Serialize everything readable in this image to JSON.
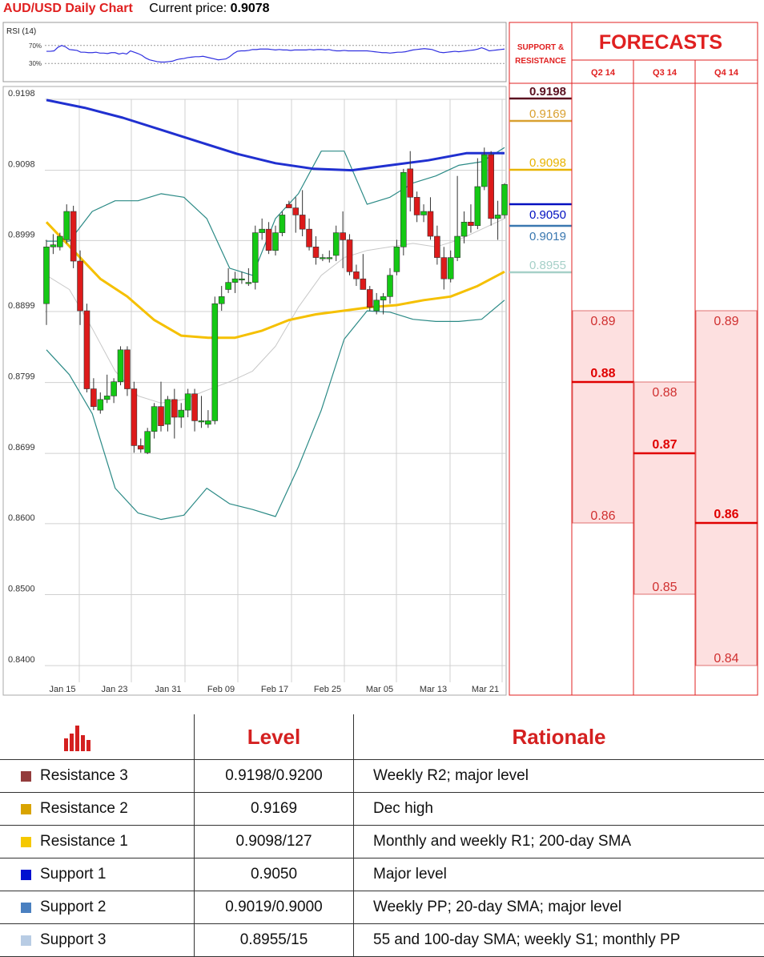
{
  "header": {
    "title": "AUD/USD Daily Chart",
    "price_label": "Current price:",
    "price_value": "0.9078"
  },
  "rsi": {
    "label": "RSI (14)",
    "upper_label": "70%",
    "lower_label": "30%",
    "values": [
      57,
      57,
      58,
      66,
      70,
      67,
      61,
      60,
      59,
      55,
      55,
      54,
      54,
      55,
      53,
      53,
      52,
      54,
      54,
      51,
      53,
      51,
      58,
      55,
      52,
      48,
      42,
      38,
      36,
      34,
      33,
      33,
      34,
      35,
      38,
      40,
      41,
      43,
      44,
      45,
      45,
      46,
      44,
      42,
      40,
      38,
      39,
      40,
      45,
      52,
      57,
      58,
      58,
      59,
      61,
      61,
      62,
      62,
      62,
      61,
      60,
      61,
      60,
      60,
      59,
      60,
      60,
      60,
      60,
      61,
      60,
      61,
      61,
      60,
      61,
      59,
      58,
      58,
      59,
      58,
      58,
      58,
      58,
      58,
      58,
      57,
      56,
      55,
      54,
      54,
      53,
      54,
      55,
      55,
      56,
      58,
      60,
      61,
      62,
      63,
      62,
      61,
      58,
      55,
      54,
      55,
      56,
      57,
      56,
      57,
      58,
      59,
      60,
      62,
      65,
      62,
      58,
      59,
      60,
      61,
      62
    ]
  },
  "chart_data": {
    "type": "candlestick",
    "title": "AUD/USD Daily Chart",
    "ylim": [
      0.839,
      0.9198
    ],
    "y_ticks": [
      "0.9198",
      "0.9098",
      "0.8999",
      "0.8899",
      "0.8799",
      "0.8699",
      "0.8600",
      "0.8500",
      "0.8400"
    ],
    "x_ticks": [
      "Jan 15",
      "Jan 23",
      "Jan 31",
      "Feb 09",
      "Feb 17",
      "Feb 25",
      "Mar 05",
      "Mar 13",
      "Mar 21"
    ],
    "candles": [
      {
        "o": 0.891,
        "h": 0.9,
        "l": 0.888,
        "c": 0.899
      },
      {
        "o": 0.899,
        "h": 0.9008,
        "l": 0.898,
        "c": 0.8993
      },
      {
        "o": 0.899,
        "h": 0.901,
        "l": 0.8985,
        "c": 0.9005
      },
      {
        "o": 0.9,
        "h": 0.905,
        "l": 0.8995,
        "c": 0.904
      },
      {
        "o": 0.904,
        "h": 0.9048,
        "l": 0.896,
        "c": 0.897
      },
      {
        "o": 0.897,
        "h": 0.8985,
        "l": 0.888,
        "c": 0.89
      },
      {
        "o": 0.89,
        "h": 0.891,
        "l": 0.8785,
        "c": 0.879
      },
      {
        "o": 0.879,
        "h": 0.8805,
        "l": 0.876,
        "c": 0.8765
      },
      {
        "o": 0.876,
        "h": 0.8785,
        "l": 0.8755,
        "c": 0.8775
      },
      {
        "o": 0.8775,
        "h": 0.881,
        "l": 0.877,
        "c": 0.878
      },
      {
        "o": 0.878,
        "h": 0.8805,
        "l": 0.877,
        "c": 0.88
      },
      {
        "o": 0.88,
        "h": 0.885,
        "l": 0.8795,
        "c": 0.8845
      },
      {
        "o": 0.8845,
        "h": 0.885,
        "l": 0.878,
        "c": 0.879
      },
      {
        "o": 0.879,
        "h": 0.88,
        "l": 0.87,
        "c": 0.871
      },
      {
        "o": 0.871,
        "h": 0.872,
        "l": 0.87,
        "c": 0.8705
      },
      {
        "o": 0.87,
        "h": 0.8735,
        "l": 0.8698,
        "c": 0.873
      },
      {
        "o": 0.873,
        "h": 0.877,
        "l": 0.872,
        "c": 0.8765
      },
      {
        "o": 0.8765,
        "h": 0.88,
        "l": 0.873,
        "c": 0.8738
      },
      {
        "o": 0.874,
        "h": 0.878,
        "l": 0.873,
        "c": 0.8775
      },
      {
        "o": 0.8775,
        "h": 0.879,
        "l": 0.872,
        "c": 0.875
      },
      {
        "o": 0.875,
        "h": 0.877,
        "l": 0.8735,
        "c": 0.876
      },
      {
        "o": 0.876,
        "h": 0.879,
        "l": 0.875,
        "c": 0.8783
      },
      {
        "o": 0.8783,
        "h": 0.879,
        "l": 0.873,
        "c": 0.8745
      },
      {
        "o": 0.8745,
        "h": 0.878,
        "l": 0.8735,
        "c": 0.8745
      },
      {
        "o": 0.874,
        "h": 0.876,
        "l": 0.8735,
        "c": 0.8745
      },
      {
        "o": 0.8745,
        "h": 0.892,
        "l": 0.874,
        "c": 0.891
      },
      {
        "o": 0.891,
        "h": 0.8935,
        "l": 0.89,
        "c": 0.892
      },
      {
        "o": 0.893,
        "h": 0.896,
        "l": 0.8925,
        "c": 0.894
      },
      {
        "o": 0.894,
        "h": 0.8955,
        "l": 0.8925,
        "c": 0.8945
      },
      {
        "o": 0.8945,
        "h": 0.8955,
        "l": 0.8938,
        "c": 0.8945
      },
      {
        "o": 0.894,
        "h": 0.896,
        "l": 0.8935,
        "c": 0.894
      },
      {
        "o": 0.894,
        "h": 0.902,
        "l": 0.893,
        "c": 0.901
      },
      {
        "o": 0.901,
        "h": 0.903,
        "l": 0.9,
        "c": 0.9015
      },
      {
        "o": 0.9015,
        "h": 0.9025,
        "l": 0.898,
        "c": 0.8985
      },
      {
        "o": 0.8985,
        "h": 0.902,
        "l": 0.8978,
        "c": 0.901
      },
      {
        "o": 0.901,
        "h": 0.904,
        "l": 0.9005,
        "c": 0.9035
      },
      {
        "o": 0.905,
        "h": 0.9055,
        "l": 0.9045,
        "c": 0.9045
      },
      {
        "o": 0.9045,
        "h": 0.906,
        "l": 0.901,
        "c": 0.9035
      },
      {
        "o": 0.9035,
        "h": 0.907,
        "l": 0.9005,
        "c": 0.9015
      },
      {
        "o": 0.9015,
        "h": 0.903,
        "l": 0.8985,
        "c": 0.899
      },
      {
        "o": 0.899,
        "h": 0.9005,
        "l": 0.8965,
        "c": 0.8975
      },
      {
        "o": 0.8975,
        "h": 0.898,
        "l": 0.897,
        "c": 0.8975
      },
      {
        "o": 0.8975,
        "h": 0.8985,
        "l": 0.8968,
        "c": 0.8975
      },
      {
        "o": 0.8978,
        "h": 0.902,
        "l": 0.897,
        "c": 0.901
      },
      {
        "o": 0.901,
        "h": 0.904,
        "l": 0.896,
        "c": 0.9
      },
      {
        "o": 0.9,
        "h": 0.9008,
        "l": 0.895,
        "c": 0.8955
      },
      {
        "o": 0.8955,
        "h": 0.8965,
        "l": 0.8935,
        "c": 0.8945
      },
      {
        "o": 0.8945,
        "h": 0.898,
        "l": 0.893,
        "c": 0.893
      },
      {
        "o": 0.893,
        "h": 0.8935,
        "l": 0.89,
        "c": 0.8905
      },
      {
        "o": 0.89,
        "h": 0.8925,
        "l": 0.8895,
        "c": 0.8915
      },
      {
        "o": 0.8915,
        "h": 0.8925,
        "l": 0.8895,
        "c": 0.892
      },
      {
        "o": 0.892,
        "h": 0.896,
        "l": 0.891,
        "c": 0.895
      },
      {
        "o": 0.8955,
        "h": 0.9,
        "l": 0.895,
        "c": 0.899
      },
      {
        "o": 0.899,
        "h": 0.91,
        "l": 0.8978,
        "c": 0.9095
      },
      {
        "o": 0.91,
        "h": 0.9125,
        "l": 0.904,
        "c": 0.906
      },
      {
        "o": 0.906,
        "h": 0.9068,
        "l": 0.9025,
        "c": 0.9035
      },
      {
        "o": 0.9035,
        "h": 0.905,
        "l": 0.9025,
        "c": 0.904
      },
      {
        "o": 0.904,
        "h": 0.906,
        "l": 0.9,
        "c": 0.9005
      },
      {
        "o": 0.9005,
        "h": 0.902,
        "l": 0.8965,
        "c": 0.8975
      },
      {
        "o": 0.8975,
        "h": 0.899,
        "l": 0.893,
        "c": 0.8945
      },
      {
        "o": 0.8945,
        "h": 0.8985,
        "l": 0.894,
        "c": 0.8975
      },
      {
        "o": 0.8975,
        "h": 0.909,
        "l": 0.897,
        "c": 0.9005
      },
      {
        "o": 0.9005,
        "h": 0.904,
        "l": 0.8995,
        "c": 0.9025
      },
      {
        "o": 0.9025,
        "h": 0.905,
        "l": 0.901,
        "c": 0.902
      },
      {
        "o": 0.902,
        "h": 0.9115,
        "l": 0.9015,
        "c": 0.9075
      },
      {
        "o": 0.9075,
        "h": 0.913,
        "l": 0.907,
        "c": 0.912
      },
      {
        "o": 0.912,
        "h": 0.9125,
        "l": 0.902,
        "c": 0.903
      },
      {
        "o": 0.903,
        "h": 0.9055,
        "l": 0.9,
        "c": 0.9035
      },
      {
        "o": 0.9035,
        "h": 0.908,
        "l": 0.903,
        "c": 0.9078
      }
    ],
    "sma_200": [
      0.9197,
      0.9186,
      0.9172,
      0.9155,
      0.9138,
      0.9121,
      0.9108,
      0.91,
      0.9098,
      0.9105,
      0.9112,
      0.9122,
      0.9122
    ],
    "sma_55": [
      0.9025,
      0.8985,
      0.8945,
      0.892,
      0.8887,
      0.8865,
      0.8862,
      0.8862,
      0.8872,
      0.8887,
      0.8895,
      0.89,
      0.8905,
      0.8908,
      0.8915,
      0.892,
      0.8935,
      0.8955
    ],
    "boll_upper": [
      0.8998,
      0.8998,
      0.904,
      0.9055,
      0.9055,
      0.9065,
      0.906,
      0.903,
      0.896,
      0.895,
      0.903,
      0.9065,
      0.9125,
      0.9125,
      0.905,
      0.906,
      0.908,
      0.909,
      0.9105,
      0.911,
      0.913
    ],
    "boll_lower": [
      0.8845,
      0.881,
      0.8755,
      0.865,
      0.8615,
      0.8606,
      0.8612,
      0.865,
      0.8628,
      0.862,
      0.861,
      0.868,
      0.876,
      0.886,
      0.89,
      0.8898,
      0.8888,
      0.8885,
      0.8885,
      0.8888,
      0.8915
    ],
    "boll_mid": [
      0.895,
      0.893,
      0.8875,
      0.8815,
      0.878,
      0.877,
      0.8775,
      0.8788,
      0.88,
      0.8815,
      0.885,
      0.8905,
      0.895,
      0.8975,
      0.8985,
      0.899,
      0.8995,
      0.899,
      0.9,
      0.9015,
      0.903
    ]
  },
  "sr_panel": {
    "header": "SUPPORT & RESISTANCE",
    "levels": [
      {
        "label": "0.9198",
        "value": 0.9198,
        "color": "#5a1020",
        "bold": true
      },
      {
        "label": "0.9169",
        "value": 0.9169,
        "color": "#d9a030",
        "bold": false
      },
      {
        "label": "0.9098",
        "value": 0.9098,
        "color": "#e8b400",
        "bold": false
      },
      {
        "label": "0.9050",
        "value": 0.905,
        "color": "#0010c0",
        "bold": false
      },
      {
        "label": "0.9019",
        "value": 0.9019,
        "color": "#3a78b0",
        "bold": false
      },
      {
        "label": "0.8955",
        "value": 0.8955,
        "color": "#a6d0c8",
        "bold": false
      }
    ]
  },
  "forecasts": {
    "title": "FORECASTS",
    "columns": [
      {
        "label": "Q2 14",
        "high": "0.89",
        "mid": "0.88",
        "low": "0.86",
        "high_v": 0.89,
        "mid_v": 0.88,
        "low_v": 0.86
      },
      {
        "label": "Q3 14",
        "high": "0.88",
        "mid": "0.87",
        "low": "0.85",
        "high_v": 0.88,
        "mid_v": 0.87,
        "low_v": 0.85
      },
      {
        "label": "Q4 14",
        "high": "0.89",
        "mid": "0.86",
        "low": "0.84",
        "high_v": 0.89,
        "mid_v": 0.86,
        "low_v": 0.84
      }
    ]
  },
  "table": {
    "col_level": "Level",
    "col_rationale": "Rationale",
    "rows": [
      {
        "name": "Resistance 3",
        "level": "0.9198/0.9200",
        "rationale": "Weekly R2; major level",
        "color": "#933c3c"
      },
      {
        "name": "Resistance 2",
        "level": "0.9169",
        "rationale": "Dec high",
        "color": "#d9a400"
      },
      {
        "name": "Resistance 1",
        "level": "0.9098/127",
        "rationale": "Monthly and weekly R1; 200-day SMA",
        "color": "#f5c800"
      },
      {
        "name": "Support 1",
        "level": "0.9050",
        "rationale": "Major level",
        "color": "#0010d0"
      },
      {
        "name": "Support 2",
        "level": "0.9019/0.9000",
        "rationale": "Weekly PP; 20-day SMA; major level",
        "color": "#4a80c0"
      },
      {
        "name": "Support 3",
        "level": "0.8955/15",
        "rationale": "55 and 100-day SMA; weekly S1; monthly PP",
        "color": "#b8cce4"
      }
    ]
  },
  "colors": {
    "up": "#14c814",
    "down": "#dd1a1a",
    "sma200": "#2030d0",
    "sma55": "#f5c000",
    "bollinger": "#2b8a86",
    "accent": "#e02020"
  }
}
